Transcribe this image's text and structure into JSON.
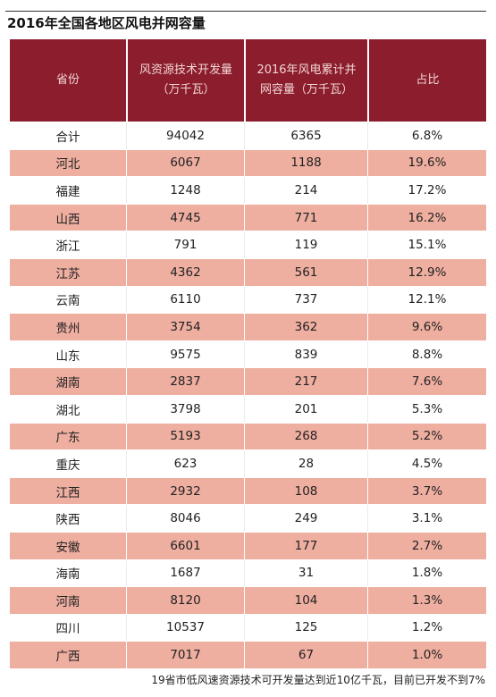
{
  "title": "2016年全国各地区风电并网容量",
  "footnote": "19省市低风速资源技术可开发量达到近10亿千瓦，目前已开发不到7%",
  "colors": {
    "header_bg": "#8b1d2c",
    "header_text": "#f2d6d6",
    "stripe": "#eeaea0",
    "white": "#ffffff"
  },
  "chart_data": {
    "type": "table",
    "title": "2016年全国各地区风电并网容量",
    "headers": [
      [
        "省份"
      ],
      [
        "风资源技术开发量",
        "（万千瓦）"
      ],
      [
        "2016年风电累计并",
        "网容量（万千瓦）"
      ],
      [
        "占比"
      ]
    ],
    "rows": [
      [
        "合计",
        "94042",
        "6365",
        "6.8%"
      ],
      [
        "河北",
        "6067",
        "1188",
        "19.6%"
      ],
      [
        "福建",
        "1248",
        "214",
        "17.2%"
      ],
      [
        "山西",
        "4745",
        "771",
        "16.2%"
      ],
      [
        "浙江",
        "791",
        "119",
        "15.1%"
      ],
      [
        "江苏",
        "4362",
        "561",
        "12.9%"
      ],
      [
        "云南",
        "6110",
        "737",
        "12.1%"
      ],
      [
        "贵州",
        "3754",
        "362",
        "9.6%"
      ],
      [
        "山东",
        "9575",
        "839",
        "8.8%"
      ],
      [
        "湖南",
        "2837",
        "217",
        "7.6%"
      ],
      [
        "湖北",
        "3798",
        "201",
        "5.3%"
      ],
      [
        "广东",
        "5193",
        "268",
        "5.2%"
      ],
      [
        "重庆",
        "623",
        "28",
        "4.5%"
      ],
      [
        "江西",
        "2932",
        "108",
        "3.7%"
      ],
      [
        "陕西",
        "8046",
        "249",
        "3.1%"
      ],
      [
        "安徽",
        "6601",
        "177",
        "2.7%"
      ],
      [
        "海南",
        "1687",
        "31",
        "1.8%"
      ],
      [
        "河南",
        "8120",
        "104",
        "1.3%"
      ],
      [
        "四川",
        "10537",
        "125",
        "1.2%"
      ],
      [
        "广西",
        "7017",
        "67",
        "1.0%"
      ]
    ]
  }
}
